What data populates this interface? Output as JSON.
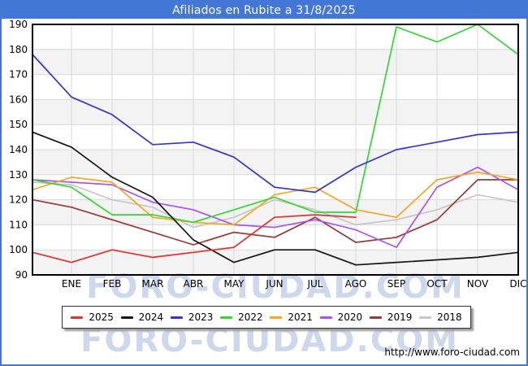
{
  "title": "Afiliados en Rubite a 31/8/2025",
  "watermark": "FORO-CIUDAD.COM",
  "footer_url": "http://www.foro-ciudad.com",
  "theme": {
    "header_bg": "#4377d6",
    "header_text": "#ffffff",
    "band_gray": "#f3f3f3",
    "grid_color": "#d9d9d9",
    "plot_border": "#000000",
    "watermark_color": "#c3cfe9"
  },
  "chart_data": {
    "type": "line",
    "title": "Afiliados en Rubite a 31/8/2025",
    "x_tick_labels": [
      "ENE",
      "FEB",
      "MAR",
      "ABR",
      "MAY",
      "JUN",
      "JUL",
      "AGO",
      "SEP",
      "OCT",
      "NOV",
      "DIC"
    ],
    "includes_unlabeled_start_point": true,
    "ylim": [
      90,
      190
    ],
    "y_ticks": [
      90,
      100,
      110,
      120,
      130,
      140,
      150,
      160,
      170,
      180,
      190
    ],
    "grid": true,
    "legend_position": "bottom",
    "series": [
      {
        "name": "2025",
        "color": "#e03030",
        "values": [
          99,
          95,
          100,
          97,
          99,
          101,
          113,
          114,
          113
        ]
      },
      {
        "name": "2024",
        "color": "#151515",
        "values": [
          147,
          141,
          129,
          121,
          104,
          95,
          100,
          100,
          94,
          95,
          96,
          97,
          99
        ]
      },
      {
        "name": "2023",
        "color": "#3434cc",
        "values": [
          178,
          161,
          154,
          142,
          143,
          137,
          125,
          123,
          133,
          140,
          143,
          146,
          147
        ]
      },
      {
        "name": "2022",
        "color": "#33d633",
        "values": [
          128,
          125,
          114,
          114,
          111,
          116,
          121,
          115,
          115,
          189,
          183,
          190,
          178
        ]
      },
      {
        "name": "2021",
        "color": "#f6a623",
        "values": [
          124,
          129,
          127,
          113,
          111,
          110,
          122,
          125,
          116,
          113,
          128,
          131,
          128
        ]
      },
      {
        "name": "2020",
        "color": "#a855ec",
        "values": [
          128,
          127,
          126,
          119,
          116,
          110,
          109,
          112,
          108,
          101,
          125,
          133,
          124
        ]
      },
      {
        "name": "2019",
        "color": "#993838",
        "values": [
          120,
          117,
          112,
          107,
          102,
          107,
          105,
          113,
          103,
          105,
          112,
          128,
          128
        ]
      },
      {
        "name": "2018",
        "color": "#c6c6c6",
        "values": [
          127,
          126,
          120,
          117,
          109,
          113,
          120,
          116,
          110,
          112,
          116,
          122,
          119
        ]
      }
    ]
  },
  "legend": {
    "items": [
      "2025",
      "2024",
      "2023",
      "2022",
      "2021",
      "2020",
      "2019",
      "2018"
    ]
  }
}
